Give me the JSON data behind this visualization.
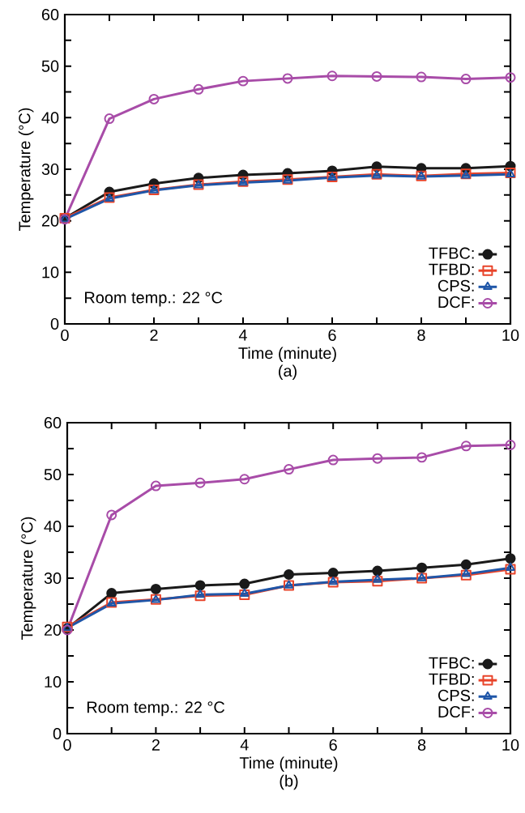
{
  "chart_data": [
    {
      "type": "line",
      "title": "(a)",
      "xlabel": "Time (minute)",
      "ylabel": "Temperature (°C)",
      "annotations": [
        "Room temp.: 22 °C"
      ],
      "legend": "bottom right",
      "x": [
        0,
        1,
        2,
        3,
        4,
        5,
        6,
        7,
        8,
        9,
        10
      ],
      "xlim": [
        0,
        10
      ],
      "ylim": [
        0,
        60
      ],
      "xticks": [
        0,
        {
          "value": 1,
          "label": null
        },
        2,
        {
          "value": 3,
          "label": null
        },
        4,
        {
          "value": 5,
          "label": null
        },
        6,
        {
          "value": 7,
          "label": null
        },
        8,
        {
          "value": 9,
          "label": null
        },
        10
      ],
      "yticks": [
        0,
        {
          "value": 5,
          "label": null
        },
        10,
        {
          "value": 15,
          "label": null
        },
        20,
        {
          "value": 25,
          "label": null
        },
        30,
        {
          "value": 35,
          "label": null
        },
        40,
        {
          "value": 45,
          "label": null
        },
        50,
        {
          "value": 55,
          "label": null
        },
        60
      ],
      "series": [
        {
          "name": "TFBC:",
          "color": "#1a1a1a",
          "marker": "circle",
          "values": [
            20.5,
            25.6,
            27.2,
            28.3,
            28.9,
            29.2,
            29.7,
            30.5,
            30.2,
            30.2,
            30.6
          ]
        },
        {
          "name": "TFBD:",
          "color": "#e8442a",
          "marker": "square",
          "values": [
            20.5,
            24.5,
            26.0,
            27.0,
            27.6,
            28.0,
            28.5,
            29.0,
            28.7,
            29.1,
            29.3
          ]
        },
        {
          "name": "CPS:",
          "color": "#1f56a8",
          "marker": "triangle",
          "values": [
            20.3,
            24.3,
            25.9,
            26.9,
            27.4,
            27.8,
            28.4,
            28.8,
            28.6,
            28.8,
            29.0
          ]
        },
        {
          "name": "DCF:",
          "color": "#a84ca8",
          "marker": "circle",
          "values": [
            20.3,
            39.8,
            43.6,
            45.5,
            47.1,
            47.6,
            48.1,
            48.0,
            47.9,
            47.5,
            47.8
          ]
        }
      ]
    },
    {
      "type": "line",
      "title": "(b)",
      "xlabel": "Time (minute)",
      "ylabel": "Temperature (°C)",
      "annotations": [
        "Room temp.: 22 °C"
      ],
      "legend": "bottom right",
      "x": [
        0,
        1,
        2,
        3,
        4,
        5,
        6,
        7,
        8,
        9,
        10
      ],
      "xlim": [
        0,
        10
      ],
      "ylim": [
        0,
        60
      ],
      "xticks": [
        0,
        {
          "value": 1,
          "label": null
        },
        2,
        {
          "value": 3,
          "label": null
        },
        4,
        {
          "value": 5,
          "label": null
        },
        6,
        {
          "value": 7,
          "label": null
        },
        8,
        {
          "value": 9,
          "label": null
        },
        10
      ],
      "yticks": [
        0,
        {
          "value": 5,
          "label": null
        },
        10,
        {
          "value": 15,
          "label": null
        },
        20,
        {
          "value": 25,
          "label": null
        },
        30,
        {
          "value": 35,
          "label": null
        },
        40,
        {
          "value": 45,
          "label": null
        },
        50,
        {
          "value": 55,
          "label": null
        },
        60
      ],
      "series": [
        {
          "name": "TFBC:",
          "color": "#1a1a1a",
          "marker": "circle",
          "values": [
            20.3,
            27.1,
            27.9,
            28.6,
            28.9,
            30.7,
            31.0,
            31.4,
            32.0,
            32.6,
            33.8
          ]
        },
        {
          "name": "TFBD:",
          "color": "#e8442a",
          "marker": "square",
          "values": [
            20.6,
            25.3,
            25.9,
            26.6,
            26.8,
            28.6,
            29.2,
            29.4,
            30.0,
            30.6,
            31.7
          ]
        },
        {
          "name": "CPS:",
          "color": "#1f56a8",
          "marker": "triangle",
          "values": [
            20.4,
            25.1,
            25.8,
            26.8,
            27.0,
            28.6,
            29.3,
            29.7,
            30.0,
            30.8,
            32.0
          ]
        },
        {
          "name": "DCF:",
          "color": "#a84ca8",
          "marker": "circle",
          "values": [
            20.0,
            42.2,
            47.8,
            48.4,
            49.1,
            51.0,
            52.8,
            53.1,
            53.3,
            55.5,
            55.7
          ]
        }
      ]
    }
  ]
}
